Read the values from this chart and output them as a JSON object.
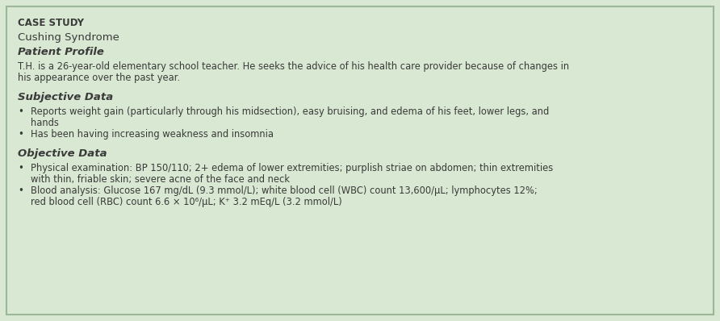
{
  "bg_color": "#d9e8d2",
  "border_color": "#9ab898",
  "text_color": "#3a3a3a",
  "title_bold": "CASE STUDY",
  "title_main": "Cushing Syndrome",
  "section1_header": "Patient Profile",
  "section1_body_line1": "T.H. is a 26-year-old elementary school teacher. He seeks the advice of his health care provider because of changes in",
  "section1_body_line2": "his appearance over the past year.",
  "section2_header": "Subjective Data",
  "section2_bullet1_line1": "Reports weight gain (particularly through his midsection), easy bruising, and edema of his feet, lower legs, and",
  "section2_bullet1_line2": "hands",
  "section2_bullet2": "Has been having increasing weakness and insomnia",
  "section3_header": "Objective Data",
  "section3_bullet1_line1": "Physical examination: BP 150/110; 2+ edema of lower extremities; purplish striae on abdomen; thin extremities",
  "section3_bullet1_line2": "with thin, friable skin; severe acne of the face and neck",
  "section3_bullet2_line1": "Blood analysis: Glucose 167 mg/dL (9.3 mmol/L); white blood cell (WBC) count 13,600/μL; lymphocytes 12%;",
  "section3_bullet2_line2": "red blood cell (RBC) count 6.6 × 10⁶/μL; K⁺ 3.2 mEq/L (3.2 mmol/L)",
  "figsize": [
    8.92,
    3.98
  ],
  "dpi": 100
}
